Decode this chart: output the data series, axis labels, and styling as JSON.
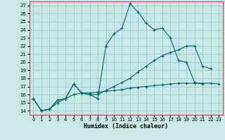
{
  "xlabel": "Humidex (Indice chaleur)",
  "bg_color": "#c8e8e8",
  "grid_color": "#99cccc",
  "line_color": "#006666",
  "xlim": [
    -0.5,
    23.5
  ],
  "ylim": [
    13.5,
    27.5
  ],
  "xticks": [
    0,
    1,
    2,
    3,
    4,
    5,
    6,
    7,
    8,
    9,
    10,
    11,
    12,
    13,
    14,
    15,
    16,
    17,
    18,
    19,
    20,
    21,
    22,
    23
  ],
  "yticks": [
    14,
    15,
    16,
    17,
    18,
    19,
    20,
    21,
    22,
    23,
    24,
    25,
    26,
    27
  ],
  "line1_x": [
    0,
    1,
    2,
    3,
    4,
    5,
    6,
    7,
    8,
    9,
    10,
    11,
    12,
    13,
    14,
    15,
    16,
    17,
    18,
    19,
    20,
    21
  ],
  "line1_y": [
    15.5,
    14.0,
    14.2,
    15.3,
    15.5,
    17.3,
    16.2,
    16.0,
    15.5,
    22.0,
    23.5,
    24.2,
    27.2,
    26.2,
    24.8,
    24.0,
    24.2,
    23.0,
    20.2,
    20.0,
    17.5,
    17.3
  ],
  "line2_x": [
    0,
    1,
    2,
    3,
    4,
    5,
    6,
    7,
    8,
    9,
    10,
    11,
    12,
    13,
    14,
    15,
    16,
    17,
    18,
    19,
    20,
    21,
    22
  ],
  "line2_y": [
    15.5,
    14.0,
    14.2,
    15.3,
    15.5,
    17.3,
    16.2,
    16.0,
    16.0,
    16.5,
    17.0,
    17.5,
    18.0,
    18.8,
    19.5,
    20.2,
    20.8,
    21.2,
    21.5,
    22.0,
    22.0,
    19.5,
    19.2
  ],
  "line3_x": [
    0,
    1,
    2,
    3,
    4,
    5,
    6,
    7,
    8,
    9,
    10,
    11,
    12,
    13,
    14,
    15,
    16,
    17,
    18,
    19,
    20,
    21,
    22,
    23
  ],
  "line3_y": [
    15.5,
    14.0,
    14.2,
    15.0,
    15.5,
    16.0,
    16.2,
    16.2,
    16.3,
    16.4,
    16.5,
    16.6,
    16.8,
    16.9,
    17.0,
    17.1,
    17.2,
    17.3,
    17.4,
    17.4,
    17.4,
    17.4,
    17.4,
    17.3
  ]
}
